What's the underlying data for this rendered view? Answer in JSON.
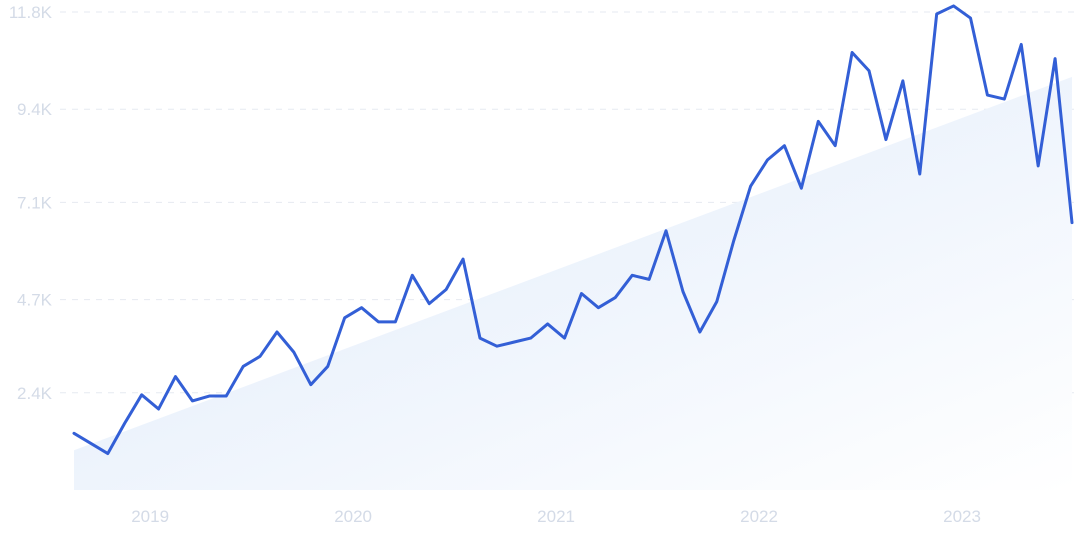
{
  "chart_data": {
    "type": "line",
    "title": "",
    "xlabel": "",
    "ylabel": "",
    "x_tick_labels": [
      "2019",
      "2020",
      "2021",
      "2022",
      "2023"
    ],
    "y_ticks": [
      2400,
      4700,
      7100,
      9400,
      11800
    ],
    "y_tick_labels": [
      "2.4K",
      "4.7K",
      "7.1K",
      "9.4K",
      "11.8K"
    ],
    "ylim": [
      0,
      11800
    ],
    "x_range_months": [
      "2018-10",
      "2023-09"
    ],
    "grid": "horizontal dashed",
    "line_color": "#335fd6",
    "trend_fill_color": "#e3edfb",
    "trend": {
      "start": 980,
      "end": 10200
    },
    "series": [
      {
        "x": [
          "2018-10",
          "2018-11",
          "2018-12",
          "2019-01",
          "2019-02",
          "2019-03",
          "2019-04",
          "2019-05",
          "2019-06",
          "2019-07",
          "2019-08",
          "2019-09",
          "2019-10",
          "2019-11",
          "2019-12",
          "2020-01",
          "2020-02",
          "2020-03",
          "2020-04",
          "2020-05",
          "2020-06",
          "2020-07",
          "2020-08",
          "2020-09",
          "2020-10",
          "2020-11",
          "2020-12",
          "2021-01",
          "2021-02",
          "2021-03",
          "2021-04",
          "2021-05",
          "2021-06",
          "2021-07",
          "2021-08",
          "2021-09",
          "2021-10",
          "2021-11",
          "2021-12",
          "2022-01",
          "2022-02",
          "2022-03",
          "2022-04",
          "2022-05",
          "2022-06",
          "2022-07",
          "2022-08",
          "2022-09",
          "2022-10",
          "2022-11",
          "2022-12",
          "2023-01",
          "2023-02",
          "2023-03",
          "2023-04",
          "2023-05",
          "2023-06",
          "2023-07",
          "2023-08",
          "2023-09"
        ],
        "values": [
          1400,
          1150,
          900,
          1650,
          2350,
          2000,
          2800,
          2200,
          2320,
          2320,
          3050,
          3300,
          3900,
          3400,
          2600,
          3050,
          4250,
          4500,
          4150,
          4150,
          5300,
          4600,
          4950,
          5700,
          3750,
          3550,
          3650,
          3750,
          4100,
          3750,
          4850,
          4500,
          4750,
          5300,
          5200,
          6400,
          4900,
          3900,
          4650,
          6150,
          7500,
          8150,
          8500,
          7450,
          9100,
          8500,
          10800,
          10350,
          8650,
          10100,
          7800,
          11750,
          11950,
          11650,
          9750,
          9650,
          11000,
          8000,
          10650,
          6600
        ]
      }
    ]
  }
}
